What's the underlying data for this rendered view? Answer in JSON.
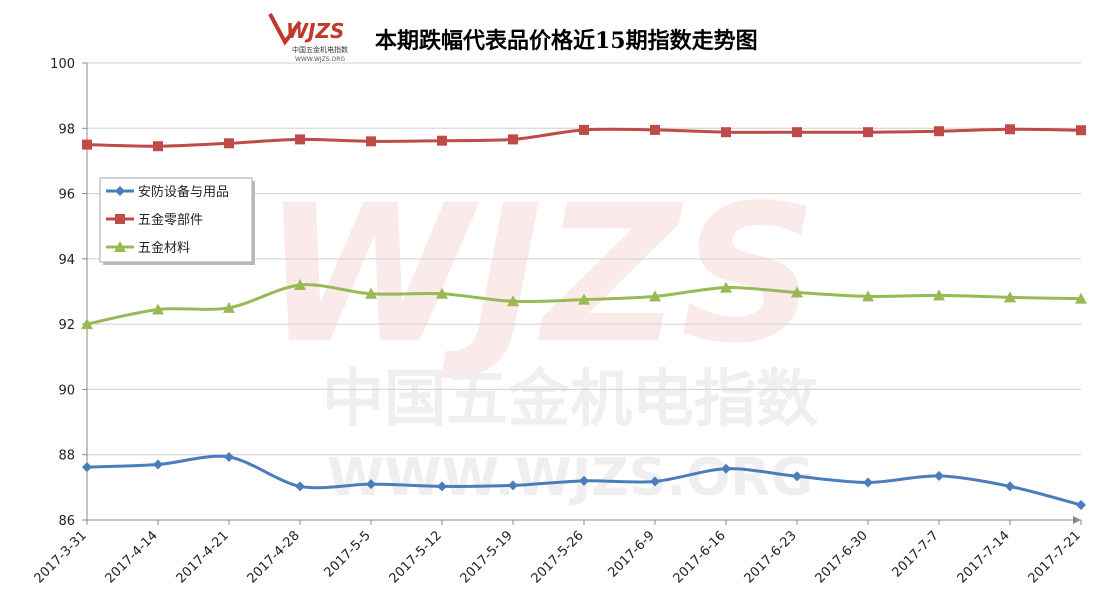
{
  "chart_data": {
    "type": "line",
    "title": "本期跌幅代表品价格近15期指数走势图",
    "logo": {
      "mark": "WJZS",
      "name": "中国五金机电指数",
      "url": "WWW.WJZS.ORG"
    },
    "categories": [
      "2017-3-31",
      "2017-4-14",
      "2017-4-21",
      "2017-4-28",
      "2017-5-5",
      "2017-5-12",
      "2017-5-19",
      "2017-5-26",
      "2017-6-9",
      "2017-6-16",
      "2017-6-23",
      "2017-6-30",
      "2017-7-7",
      "2017-7-14",
      "2017-7-21"
    ],
    "series": [
      {
        "name": "安防设备与用品",
        "color": "#4a7ebb",
        "marker": "diamond",
        "values": [
          87.62,
          87.7,
          87.93,
          87.03,
          87.1,
          87.03,
          87.06,
          87.2,
          87.18,
          87.57,
          87.34,
          87.15,
          87.35,
          87.03,
          86.46
        ]
      },
      {
        "name": "五金零部件",
        "color": "#be4b48",
        "marker": "square",
        "values": [
          97.5,
          97.45,
          97.54,
          97.66,
          97.6,
          97.62,
          97.66,
          97.95,
          97.95,
          97.88,
          97.88,
          97.88,
          97.91,
          97.97,
          97.94
        ]
      },
      {
        "name": "五金材料",
        "color": "#98b954",
        "marker": "triangle",
        "values": [
          92.0,
          92.45,
          92.5,
          93.2,
          92.93,
          92.93,
          92.7,
          92.75,
          92.85,
          93.12,
          92.97,
          92.85,
          92.88,
          92.82,
          92.78
        ]
      }
    ],
    "ylim": [
      86,
      100
    ],
    "yticks": [
      86,
      88,
      90,
      92,
      94,
      96,
      98,
      100
    ],
    "grid": true,
    "legend": "left"
  }
}
